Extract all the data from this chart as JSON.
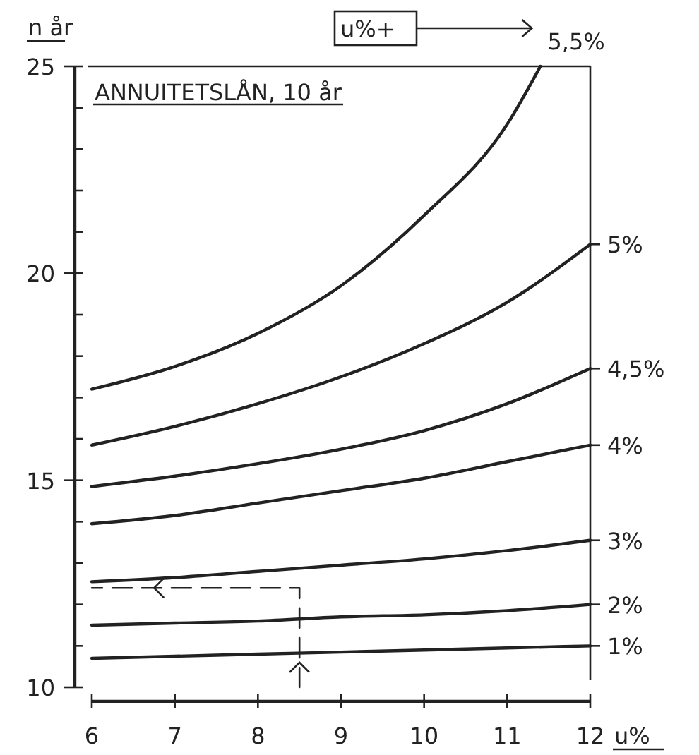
{
  "chart_data": {
    "type": "line",
    "title": "ANNUITETSLÅN, 10 år",
    "xlabel": "u%",
    "ylabel": "n år",
    "x": [
      6,
      7,
      8,
      9,
      10,
      11,
      12
    ],
    "xlim": [
      6,
      12
    ],
    "xticks": [
      6,
      7,
      8,
      9,
      10,
      11,
      12
    ],
    "ylim": [
      10,
      25
    ],
    "yticks": [
      10,
      {
        "value": 11,
        "label": null
      },
      {
        "value": 12,
        "label": null
      },
      {
        "value": 13,
        "label": null
      },
      {
        "value": 14,
        "label": null
      },
      15,
      {
        "value": 16,
        "label": null
      },
      {
        "value": 17,
        "label": null
      },
      {
        "value": 18,
        "label": null
      },
      {
        "value": 19,
        "label": null
      },
      20,
      {
        "value": 21,
        "label": null
      },
      {
        "value": 22,
        "label": null
      },
      {
        "value": 23,
        "label": null
      },
      {
        "value": 24,
        "label": null
      },
      25
    ],
    "grid": false,
    "legend": "right",
    "marker": "none",
    "line_style": "solid",
    "annotations": [
      "u%+"
    ],
    "series": [
      {
        "name": "5,5%",
        "color": "#222222",
        "x": [
          6,
          7,
          8,
          9,
          10,
          11,
          11.4
        ],
        "values": [
          17.2,
          17.75,
          18.55,
          19.7,
          21.4,
          23.6,
          25
        ]
      },
      {
        "name": "5%",
        "color": "#222222",
        "values": [
          15.85,
          16.3,
          16.85,
          17.5,
          18.3,
          19.3,
          20.7
        ]
      },
      {
        "name": "4,5%",
        "color": "#222222",
        "values": [
          14.85,
          15.1,
          15.4,
          15.75,
          16.2,
          16.85,
          17.7
        ]
      },
      {
        "name": "4%",
        "color": "#222222",
        "values": [
          13.95,
          14.15,
          14.45,
          14.75,
          15.05,
          15.45,
          15.85
        ]
      },
      {
        "name": "3%",
        "color": "#222222",
        "values": [
          12.55,
          12.65,
          12.8,
          12.95,
          13.1,
          13.3,
          13.55
        ]
      },
      {
        "name": "2%",
        "color": "#222222",
        "values": [
          11.5,
          11.55,
          11.6,
          11.7,
          11.75,
          11.85,
          12.0
        ]
      },
      {
        "name": "1%",
        "color": "#222222",
        "values": [
          10.7,
          10.75,
          10.8,
          10.85,
          10.9,
          10.95,
          11.0
        ]
      },
      {
        "color": "#222222",
        "line_style": "dashed",
        "x": [
          8.5,
          8.5,
          6
        ],
        "values": [
          10,
          12.4,
          12.4
        ]
      }
    ]
  }
}
